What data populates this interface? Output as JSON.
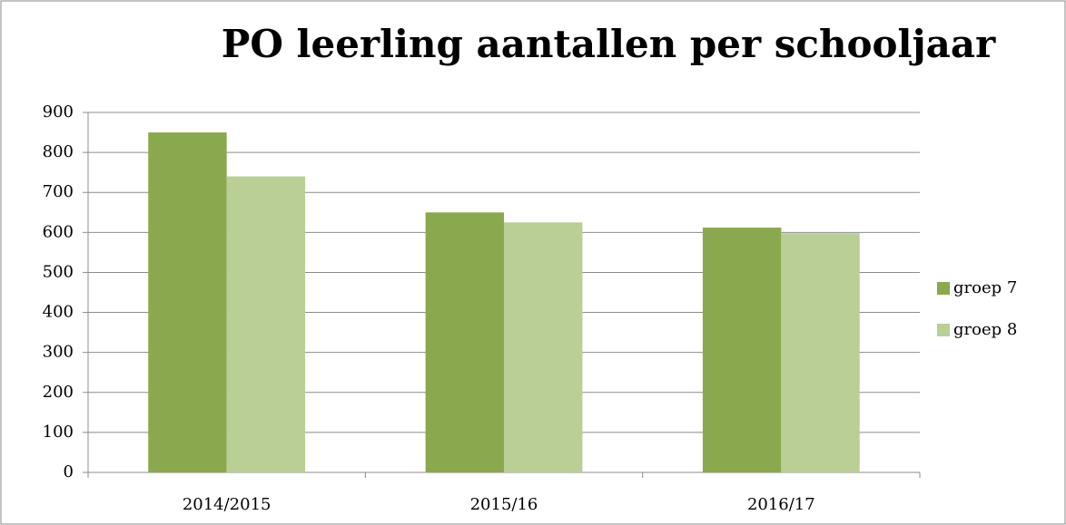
{
  "chart_data": {
    "type": "bar",
    "title": "PO leerling aantallen per schooljaar",
    "categories": [
      "2014/2015",
      "2015/16",
      "2016/17"
    ],
    "series": [
      {
        "name": "groep 7",
        "color": "#8aa94e",
        "values": [
          850,
          650,
          612
        ]
      },
      {
        "name": "groep 8",
        "color": "#b9cf95",
        "values": [
          740,
          625,
          598
        ]
      }
    ],
    "ylim": [
      0,
      900
    ],
    "yticks": [
      0,
      100,
      200,
      300,
      400,
      500,
      600,
      700,
      800,
      900
    ],
    "grid": true,
    "legend": "right"
  }
}
